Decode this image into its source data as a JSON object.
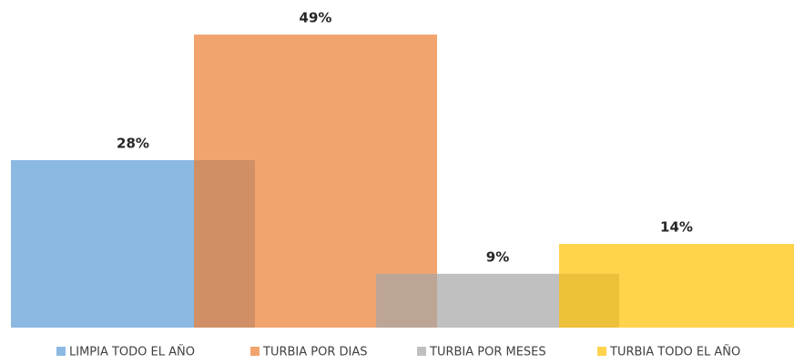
{
  "chart_data": {
    "type": "bar",
    "series": [
      {
        "name": "LIMPIA TODO EL AÑO",
        "color": "#5b9bd5",
        "values": [
          28
        ],
        "value_labels": [
          "28%"
        ]
      },
      {
        "name": "TURBIA POR DIAS",
        "color": "#ed7d31",
        "values": [
          49
        ],
        "value_labels": [
          "49%"
        ]
      },
      {
        "name": "TURBIA POR MESES",
        "color": "#a5a5a5",
        "values": [
          9
        ],
        "value_labels": [
          "9%"
        ]
      },
      {
        "name": "TURBIA TODO EL AÑO",
        "color": "#ffc000",
        "values": [
          14
        ],
        "value_labels": [
          "14%"
        ]
      }
    ],
    "legend": "bottom"
  }
}
